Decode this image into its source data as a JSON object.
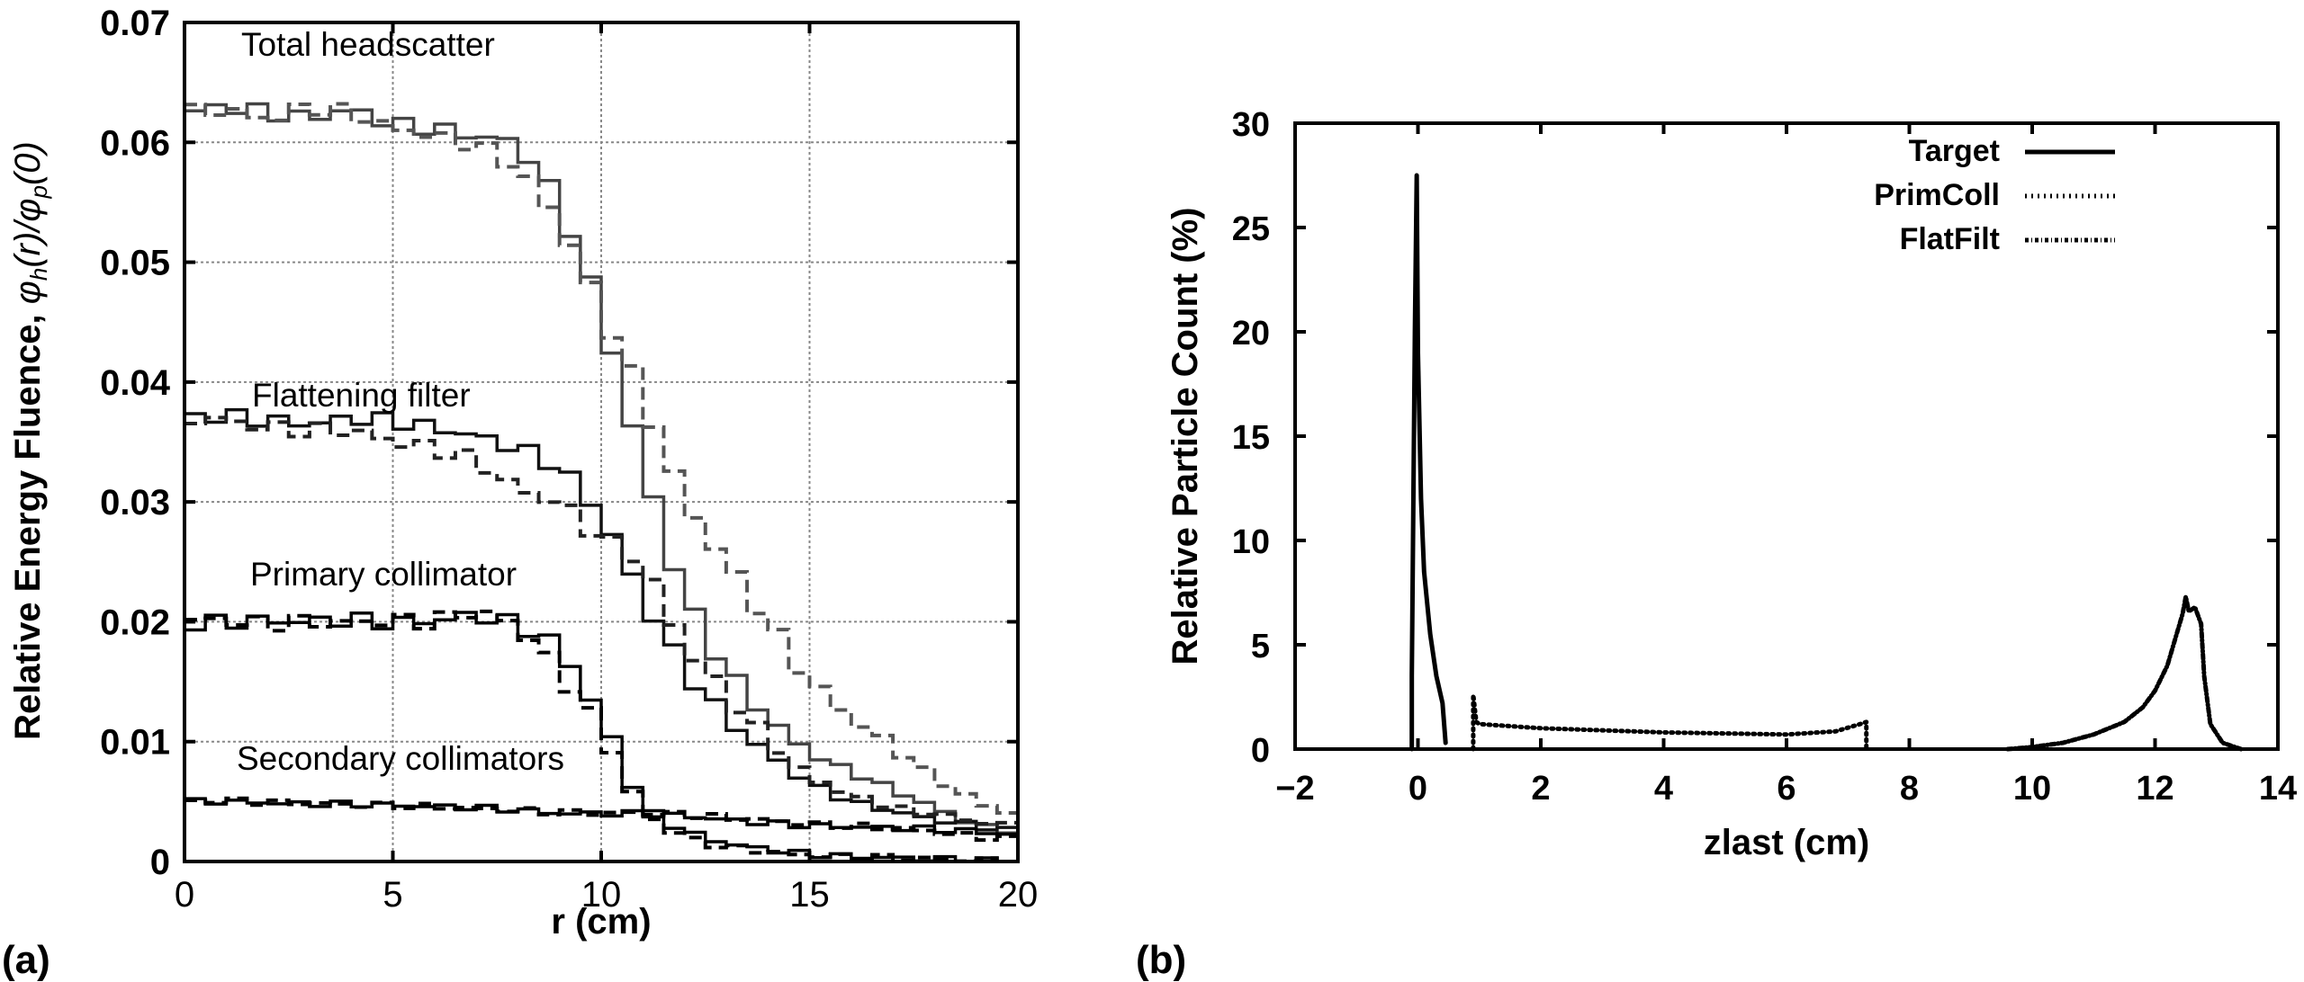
{
  "panels": {
    "a": {
      "label": "(a)"
    },
    "b": {
      "label": "(b)"
    }
  },
  "chart_data": [
    {
      "type": "line",
      "panel": "(a)",
      "style": "step histogram, solid = measured/model A, dashed = model B",
      "xlabel": "r (cm)",
      "ylabel": "Relative Energy Fluence, φh(r)/φp(0)",
      "xlim": [
        0,
        20
      ],
      "ylim": [
        0,
        0.07
      ],
      "xticks": [
        "0",
        "5",
        "10",
        "15",
        "20"
      ],
      "yticks": [
        "0",
        "0.01",
        "0.02",
        "0.03",
        "0.04",
        "0.05",
        "0.06",
        "0.07"
      ],
      "grid": true,
      "annotations": [
        "Total headscatter",
        "Flattening filter",
        "Primary collimator",
        "Secondary collimators"
      ],
      "x": [
        0,
        1,
        2,
        3,
        4,
        5,
        6,
        7,
        8,
        9,
        10,
        11,
        12,
        13,
        14,
        15,
        16,
        17,
        18,
        19,
        20
      ],
      "series": [
        {
          "name": "Total headscatter (solid)",
          "dash": false,
          "color": "#444444",
          "values": [
            0.0625,
            0.063,
            0.0625,
            0.062,
            0.0628,
            0.0615,
            0.0612,
            0.0605,
            0.06,
            0.055,
            0.046,
            0.033,
            0.022,
            0.016,
            0.012,
            0.009,
            0.0075,
            0.006,
            0.0045,
            0.003,
            0.0025
          ]
        },
        {
          "name": "Total headscatter (dashed)",
          "dash": true,
          "color": "#555555",
          "values": [
            0.0625,
            0.0628,
            0.0618,
            0.063,
            0.0625,
            0.0612,
            0.0605,
            0.0598,
            0.058,
            0.0535,
            0.046,
            0.039,
            0.03,
            0.025,
            0.02,
            0.015,
            0.012,
            0.0095,
            0.007,
            0.005,
            0.0038
          ]
        },
        {
          "name": "Flattening filter (solid)",
          "dash": false,
          "color": "#111111",
          "values": [
            0.037,
            0.0372,
            0.0368,
            0.0365,
            0.037,
            0.0368,
            0.0362,
            0.0355,
            0.0345,
            0.033,
            0.029,
            0.022,
            0.016,
            0.012,
            0.009,
            0.0065,
            0.005,
            0.0042,
            0.0035,
            0.003,
            0.0025
          ]
        },
        {
          "name": "Flattening filter (dashed)",
          "dash": true,
          "color": "#222222",
          "values": [
            0.037,
            0.0368,
            0.0362,
            0.036,
            0.036,
            0.035,
            0.0345,
            0.0335,
            0.031,
            0.03,
            0.027,
            0.025,
            0.018,
            0.014,
            0.01,
            0.007,
            0.0055,
            0.0045,
            0.004,
            0.0033,
            0.003
          ]
        },
        {
          "name": "Primary collimator (solid)",
          "dash": false,
          "color": "#000000",
          "values": [
            0.0198,
            0.02,
            0.0201,
            0.02,
            0.0202,
            0.0199,
            0.0201,
            0.0206,
            0.0198,
            0.018,
            0.012,
            0.0045,
            0.0025,
            0.0015,
            0.001,
            0.0006,
            0.0004,
            0.0003,
            0.0002,
            0.0001,
            0.0001
          ]
        },
        {
          "name": "Primary collimator (dashed)",
          "dash": true,
          "color": "#000000",
          "values": [
            0.02,
            0.0202,
            0.0198,
            0.02,
            0.0199,
            0.0201,
            0.02,
            0.021,
            0.0197,
            0.016,
            0.011,
            0.004,
            0.002,
            0.0012,
            0.0008,
            0.0005,
            0.0004,
            0.0003,
            0.0002,
            0.0001,
            0.0001
          ]
        },
        {
          "name": "Secondary collimators (solid)",
          "dash": false,
          "color": "#000000",
          "values": [
            0.005,
            0.005,
            0.0049,
            0.0048,
            0.0048,
            0.0047,
            0.0046,
            0.0045,
            0.0043,
            0.004,
            0.004,
            0.004,
            0.0038,
            0.0035,
            0.0032,
            0.003,
            0.0029,
            0.0028,
            0.0027,
            0.0025,
            0.0022
          ]
        },
        {
          "name": "Secondary collimators (dashed)",
          "dash": true,
          "color": "#000000",
          "values": [
            0.005,
            0.0051,
            0.0049,
            0.0049,
            0.0047,
            0.0047,
            0.0046,
            0.0044,
            0.0043,
            0.0041,
            0.004,
            0.0041,
            0.0039,
            0.0037,
            0.0034,
            0.0031,
            0.003,
            0.0028,
            0.0025,
            0.0021,
            0.0018
          ]
        }
      ]
    },
    {
      "type": "line",
      "panel": "(b)",
      "xlabel": "zlast (cm)",
      "ylabel": "Relative Particle Count (%)",
      "xlim": [
        -2,
        14
      ],
      "ylim": [
        0,
        30
      ],
      "xticks": [
        "-2",
        "0",
        "2",
        "4",
        "6",
        "8",
        "10",
        "12",
        "14"
      ],
      "yticks": [
        "0",
        "5",
        "10",
        "15",
        "20",
        "25",
        "30"
      ],
      "grid": false,
      "legend": {
        "position": "upper right",
        "entries": [
          "Target",
          "PrimColl",
          "FlatFilt"
        ]
      },
      "series": [
        {
          "name": "Target",
          "style": "solid",
          "x": [
            -0.1,
            -0.1,
            -0.05,
            -0.02,
            0.0,
            0.05,
            0.1,
            0.2,
            0.3,
            0.4,
            0.45
          ],
          "y": [
            0,
            3.5,
            20,
            27.5,
            19,
            12,
            8.5,
            5.5,
            3.5,
            2.2,
            0.3
          ]
        },
        {
          "name": "PrimColl",
          "style": "dotted",
          "x": [
            0.9,
            0.9,
            0.95,
            1.0,
            2.0,
            3.0,
            4.0,
            5.0,
            6.0,
            6.8,
            7.2,
            7.3,
            7.3
          ],
          "y": [
            0,
            2.6,
            1.3,
            1.2,
            1.0,
            0.9,
            0.8,
            0.75,
            0.7,
            0.85,
            1.2,
            1.3,
            0
          ]
        },
        {
          "name": "FlatFilt",
          "style": "dash-dot",
          "x": [
            9.6,
            10.0,
            10.5,
            11.0,
            11.5,
            11.8,
            12.0,
            12.2,
            12.35,
            12.45,
            12.5,
            12.55,
            12.65,
            12.75,
            12.8,
            12.9,
            13.1,
            13.4
          ],
          "y": [
            0,
            0.1,
            0.3,
            0.7,
            1.3,
            2.0,
            2.8,
            4.0,
            5.5,
            6.5,
            7.3,
            6.6,
            6.8,
            6.0,
            3.5,
            1.2,
            0.3,
            0
          ]
        }
      ]
    }
  ]
}
